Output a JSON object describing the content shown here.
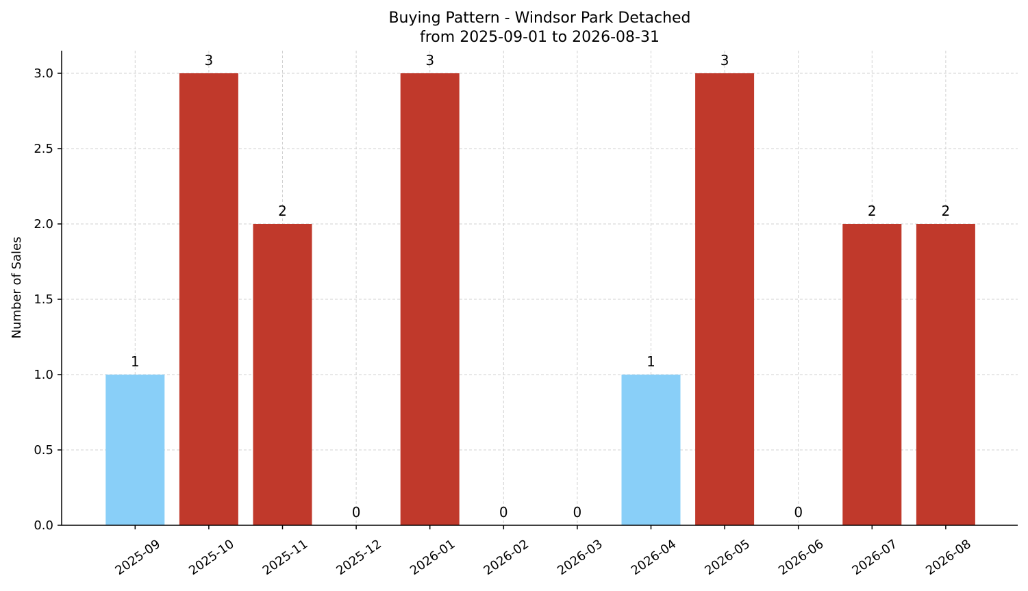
{
  "chart_data": {
    "type": "bar",
    "title": "Buying Pattern - Windsor Park Detached",
    "subtitle": "from 2025-09-01 to 2026-08-31",
    "xlabel": "",
    "ylabel": "Number of Sales",
    "ylim": [
      0,
      3.15
    ],
    "yticks": [
      "0.0",
      "0.5",
      "1.0",
      "1.5",
      "2.0",
      "2.5",
      "3.0"
    ],
    "categories": [
      "2025-09",
      "2025-10",
      "2025-11",
      "2025-12",
      "2026-01",
      "2026-02",
      "2026-03",
      "2026-04",
      "2026-05",
      "2026-06",
      "2026-07",
      "2026-08"
    ],
    "values": [
      1,
      3,
      2,
      0,
      3,
      0,
      0,
      1,
      3,
      0,
      2,
      2
    ],
    "bar_colors": [
      "#89CFF8",
      "#C0392B",
      "#C0392B",
      "#C0392B",
      "#C0392B",
      "#C0392B",
      "#C0392B",
      "#89CFF8",
      "#C0392B",
      "#C0392B",
      "#C0392B",
      "#C0392B"
    ],
    "grid": true,
    "legend": "none"
  }
}
